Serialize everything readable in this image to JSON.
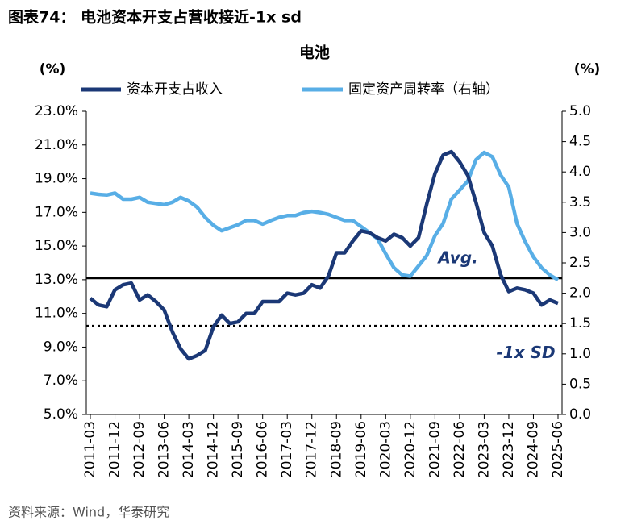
{
  "heading": "图表74：  电池资本开支占营收接近-1x sd",
  "source": "资料来源：Wind，华泰研究",
  "chart_data": {
    "type": "line",
    "title": "电池",
    "y_label": "(%)",
    "y2_label": "(%)",
    "categories": [
      "2011-03",
      null,
      null,
      "2011-12",
      null,
      null,
      "2012-09",
      null,
      null,
      "2013-06",
      null,
      null,
      "2014-03",
      null,
      null,
      "2014-12",
      null,
      null,
      "2015-09",
      null,
      null,
      "2016-06",
      null,
      null,
      "2017-03",
      null,
      null,
      "2017-12",
      null,
      null,
      "2018-09",
      null,
      null,
      "2019-06",
      null,
      null,
      "2020-03",
      null,
      null,
      "2020-12",
      null,
      null,
      "2021-09",
      null,
      null,
      "2022-06",
      null,
      null,
      "2023-03",
      null,
      null,
      "2023-12",
      null,
      null,
      "2024-09",
      null,
      null,
      "2025-06"
    ],
    "series": [
      {
        "name": "资本开支占收入",
        "color": "#1b3876",
        "axis": "y",
        "values": [
          11.9,
          11.5,
          11.4,
          12.4,
          12.7,
          12.8,
          11.8,
          12.1,
          11.7,
          11.2,
          9.9,
          8.9,
          8.3,
          8.5,
          8.8,
          10.2,
          10.9,
          10.4,
          10.5,
          11.0,
          11.0,
          11.7,
          11.7,
          11.7,
          12.2,
          12.1,
          12.2,
          12.7,
          12.5,
          13.2,
          14.6,
          14.6,
          15.3,
          15.9,
          15.8,
          15.5,
          15.3,
          15.7,
          15.5,
          15.0,
          15.5,
          17.5,
          19.3,
          20.4,
          20.6,
          20.0,
          19.2,
          17.6,
          15.8,
          15.0,
          13.3,
          12.3,
          12.5,
          12.4,
          12.2,
          11.5,
          11.8,
          11.6
        ]
      },
      {
        "name": "固定资产周转率（右轴）",
        "color": "#58aee6",
        "axis": "y2",
        "values": [
          3.65,
          3.63,
          3.62,
          3.65,
          3.55,
          3.55,
          3.58,
          3.5,
          3.48,
          3.46,
          3.5,
          3.58,
          3.52,
          3.42,
          3.25,
          3.12,
          3.03,
          3.08,
          3.13,
          3.2,
          3.2,
          3.14,
          3.2,
          3.25,
          3.28,
          3.28,
          3.33,
          3.35,
          3.33,
          3.3,
          3.25,
          3.2,
          3.2,
          3.1,
          3.0,
          2.9,
          2.65,
          2.42,
          2.3,
          2.28,
          2.45,
          2.62,
          2.95,
          3.15,
          3.55,
          3.7,
          3.85,
          4.2,
          4.32,
          4.25,
          3.95,
          3.75,
          3.15,
          2.85,
          2.6,
          2.42,
          2.3,
          2.22
        ]
      }
    ],
    "ylim": [
      5,
      23
    ],
    "yticks": [
      {
        "value": 5,
        "label": "5.0%"
      },
      {
        "value": 7,
        "label": "7.0%"
      },
      {
        "value": 9,
        "label": "9.0%"
      },
      {
        "value": 11,
        "label": "11.0%"
      },
      {
        "value": 13,
        "label": "13.0%"
      },
      {
        "value": 15,
        "label": "15.0%"
      },
      {
        "value": 17,
        "label": "17.0%"
      },
      {
        "value": 19,
        "label": "19.0%"
      },
      {
        "value": 21,
        "label": "21.0%"
      },
      {
        "value": 23,
        "label": "23.0%"
      }
    ],
    "y2lim": [
      0,
      5
    ],
    "y2ticks": [
      {
        "value": 0,
        "label": "0.0"
      },
      0.5,
      {
        "value": 1,
        "label": "1.0"
      },
      1.5,
      {
        "value": 2,
        "label": "2.0"
      },
      2.5,
      {
        "value": 3,
        "label": "3.0"
      },
      3.5,
      {
        "value": 4,
        "label": "4.0"
      },
      4.5,
      {
        "value": 5,
        "label": "5.0"
      }
    ],
    "reference_lines": [
      {
        "label": "Avg.",
        "value": 13.1,
        "style": "solid",
        "color": "#000000"
      },
      {
        "label": "-1x SD",
        "value": 10.25,
        "style": "dotted",
        "color": "#000000"
      }
    ],
    "grid": false,
    "legend": "top"
  }
}
